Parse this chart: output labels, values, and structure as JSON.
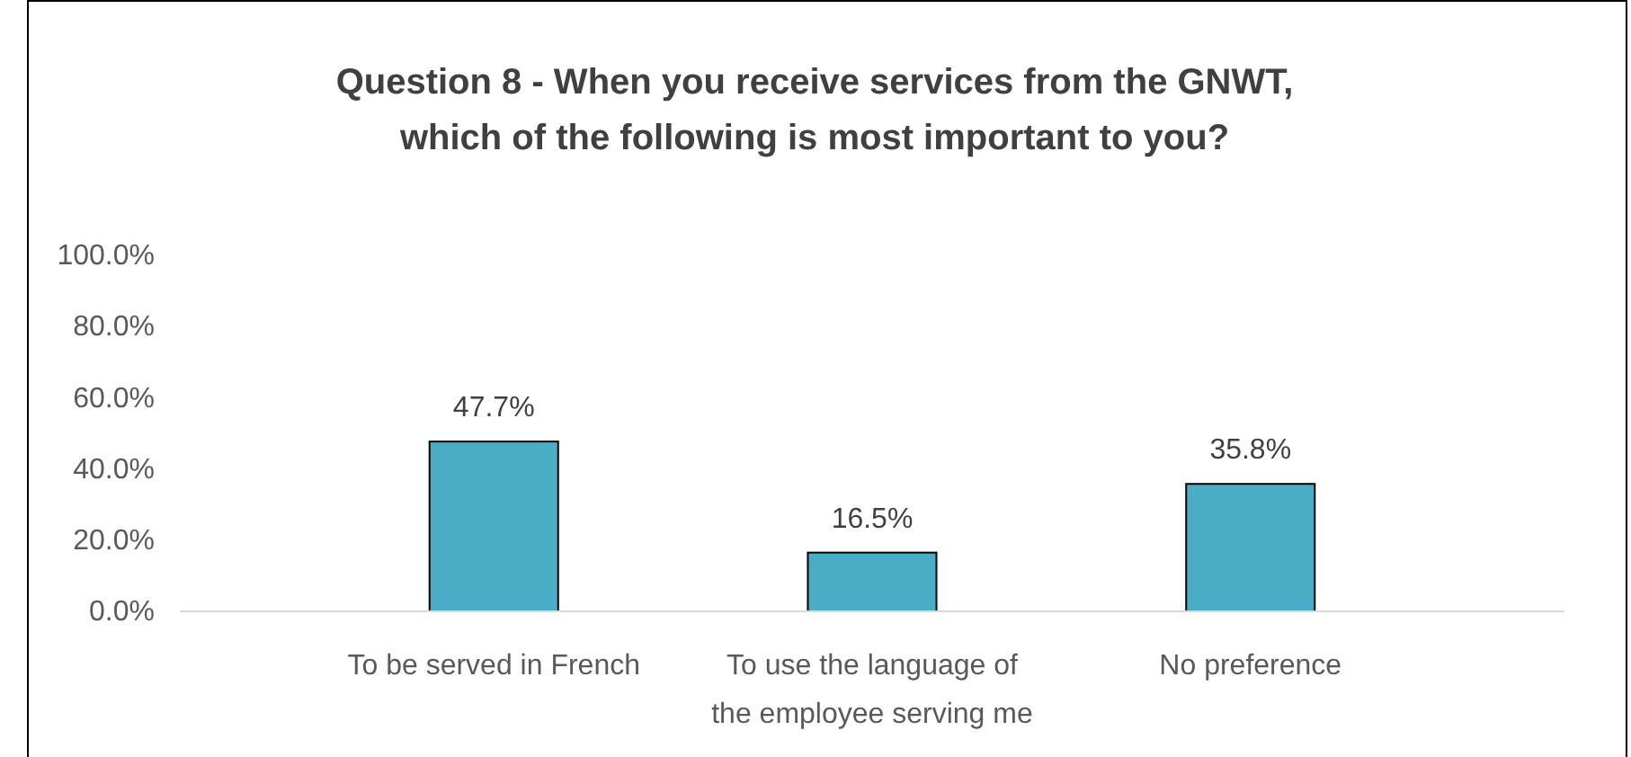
{
  "chart_data": {
    "type": "bar",
    "title": "Question 8 - When you receive services from the GNWT, which of the following is most important to you?",
    "categories": [
      "To be served in French",
      "To use the language of the employee serving me",
      "No preference"
    ],
    "values": [
      47.7,
      16.5,
      35.8
    ],
    "value_labels": [
      "47.7%",
      "16.5%",
      "35.8%"
    ],
    "color": "#4bacc6",
    "ylim": [
      0,
      100
    ],
    "yticks": [
      {
        "value": 0,
        "label": "0.0%"
      },
      {
        "value": 20,
        "label": "20.0%"
      },
      {
        "value": 40,
        "label": "40.0%"
      },
      {
        "value": 60,
        "label": "60.0%"
      },
      {
        "value": 80,
        "label": "80.0%"
      },
      {
        "value": 100,
        "label": "100.0%"
      }
    ],
    "grid": false
  }
}
